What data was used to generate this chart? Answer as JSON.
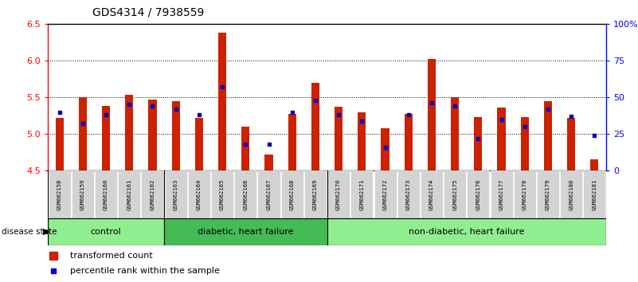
{
  "title": "GDS4314 / 7938559",
  "samples": [
    "GSM662158",
    "GSM662159",
    "GSM662160",
    "GSM662161",
    "GSM662162",
    "GSM662163",
    "GSM662164",
    "GSM662165",
    "GSM662166",
    "GSM662167",
    "GSM662168",
    "GSM662169",
    "GSM662170",
    "GSM662171",
    "GSM662172",
    "GSM662173",
    "GSM662174",
    "GSM662175",
    "GSM662176",
    "GSM662177",
    "GSM662178",
    "GSM662179",
    "GSM662180",
    "GSM662181"
  ],
  "red_values": [
    5.22,
    5.5,
    5.38,
    5.53,
    5.47,
    5.45,
    5.22,
    6.38,
    5.1,
    4.72,
    5.27,
    5.7,
    5.37,
    5.3,
    5.08,
    5.27,
    6.02,
    5.5,
    5.23,
    5.36,
    5.23,
    5.45,
    5.22,
    4.65
  ],
  "blue_values_pct": [
    40,
    32,
    38,
    45,
    44,
    42,
    38,
    57,
    18,
    18,
    40,
    48,
    38,
    34,
    16,
    38,
    46,
    44,
    22,
    35,
    30,
    42,
    37,
    24
  ],
  "groups": [
    {
      "label": "control",
      "start": 0,
      "end": 5,
      "color": "#90ee90"
    },
    {
      "label": "diabetic, heart failure",
      "start": 5,
      "end": 12,
      "color": "#44bb55"
    },
    {
      "label": "non-diabetic, heart failure",
      "start": 12,
      "end": 24,
      "color": "#90ee90"
    }
  ],
  "ylim_left": [
    4.5,
    6.5
  ],
  "ylim_right": [
    0,
    100
  ],
  "yticks_left": [
    4.5,
    5.0,
    5.5,
    6.0,
    6.5
  ],
  "yticks_right": [
    0,
    25,
    50,
    75,
    100
  ],
  "ytick_labels_right": [
    "0",
    "25",
    "50",
    "75",
    "100%"
  ],
  "bar_color": "#cc2200",
  "dot_color": "#0000cc",
  "background_color": "#ffffff",
  "axis_bg": "#ffffff",
  "grid_color": "#000000",
  "label_bg": "#d3d3d3",
  "bar_width": 0.35
}
